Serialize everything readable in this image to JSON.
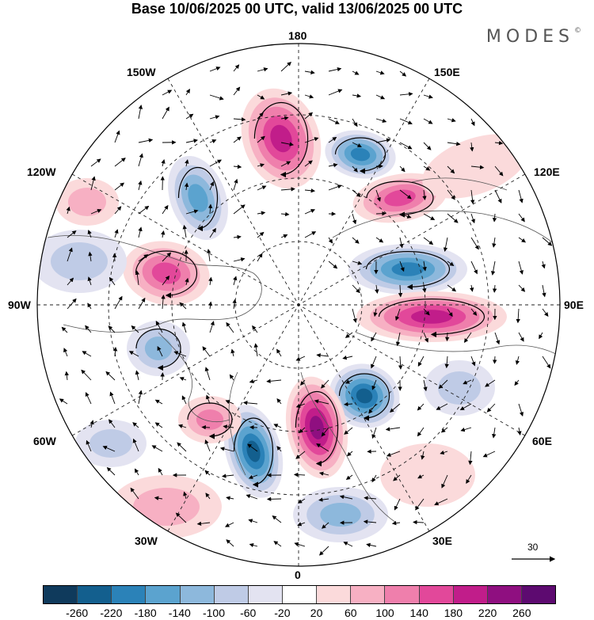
{
  "title": "Base 10/06/2025 00 UTC, valid 13/06/2025 00 UTC",
  "brand": "MODES",
  "brand_mark": "©",
  "longitude_labels": {
    "top": "180",
    "bottom": "0",
    "left": "90W",
    "right": "90E",
    "upper_left_1": "150W",
    "upper_left_2": "120W",
    "upper_right_1": "150E",
    "upper_right_2": "120E",
    "lower_left_1": "60W",
    "lower_left_2": "30W",
    "lower_right_1": "60E",
    "lower_right_2": "30E"
  },
  "reference_vector": {
    "label": "30"
  },
  "colorbar": {
    "colors": [
      "#0f3a5c",
      "#135f8e",
      "#2b82b8",
      "#5ba3cf",
      "#8db8dc",
      "#bfcbe6",
      "#e3e3f1",
      "#ffffff",
      "#fbdadb",
      "#f7b0c3",
      "#ef7fac",
      "#e2489a",
      "#c11d8a",
      "#8f0f80",
      "#5d0a70"
    ],
    "ticks": [
      "-260",
      "-220",
      "-180",
      "-140",
      "-100",
      "-60",
      "-20",
      "20",
      "60",
      "100",
      "140",
      "180",
      "220",
      "260"
    ]
  }
}
